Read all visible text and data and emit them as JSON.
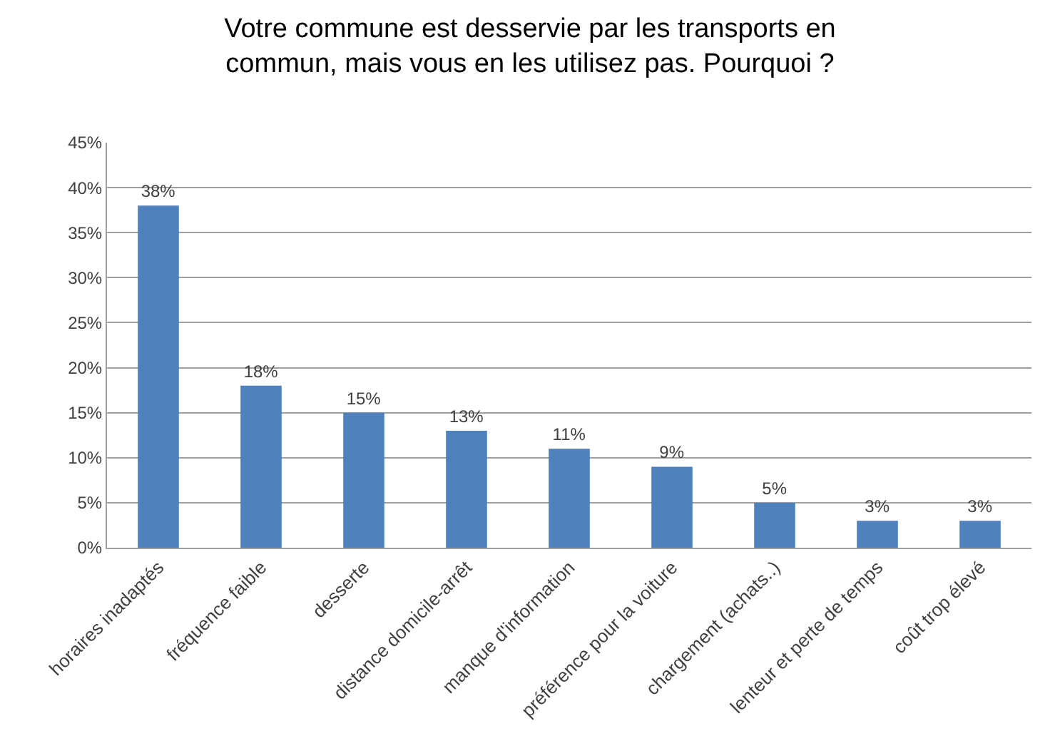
{
  "chart_data": {
    "type": "bar",
    "title": "Votre commune est desservie par les transports en\ncommun, mais vous en les utilisez pas. Pourquoi ?",
    "categories": [
      "horaires inadaptés",
      "fréquence faible",
      "desserte",
      "distance domicile-arrêt",
      "manque d'information",
      "préférence pour la voiture",
      "chargement (achats..)",
      "lenteur et perte de temps",
      "coût trop élevé"
    ],
    "values": [
      38,
      18,
      15,
      13,
      11,
      9,
      5,
      3,
      3
    ],
    "value_labels": [
      "38%",
      "18%",
      "15%",
      "13%",
      "11%",
      "9%",
      "5%",
      "3%",
      "3%"
    ],
    "color": "#4f81bd",
    "ylim": [
      0,
      45
    ],
    "yticks": [
      {
        "value": 0,
        "label": "0%"
      },
      {
        "value": 5,
        "label": "5%"
      },
      {
        "value": 10,
        "label": "10%"
      },
      {
        "value": 15,
        "label": "15%"
      },
      {
        "value": 20,
        "label": "20%"
      },
      {
        "value": 25,
        "label": "25%"
      },
      {
        "value": 30,
        "label": "30%"
      },
      {
        "value": 35,
        "label": "35%"
      },
      {
        "value": 40,
        "label": "40%"
      },
      {
        "value": 45,
        "label": "45%"
      }
    ],
    "grid": "y"
  }
}
